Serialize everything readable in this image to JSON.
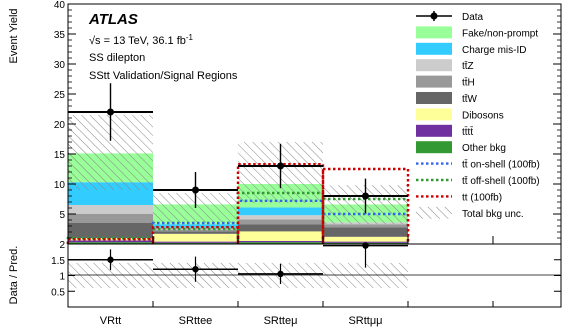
{
  "chart_data": [
    {
      "type": "bar",
      "stacked": true,
      "categories": [
        "VRtt",
        "SRttee",
        "SRtteμ",
        "SRttμμ"
      ],
      "ylabel": "Event Yield",
      "ylim": [
        0,
        40
      ],
      "yticks": [
        5,
        10,
        15,
        20,
        25,
        30,
        35,
        40
      ],
      "annotations": {
        "experiment": "ATLAS",
        "energy_prefix": "√s = 13 TeV, 36.1 fb",
        "energy_sup": "-1",
        "line2": "SS dilepton",
        "line3": "SStt Validation/Signal Regions"
      },
      "series": [
        {
          "name": "Other bkg",
          "color": "#339933",
          "values": [
            0.3,
            0.2,
            0.3,
            0.2
          ]
        },
        {
          "name": "tt̄tt̄",
          "color": "#7030a0",
          "values": [
            0.3,
            0.2,
            0.2,
            0.2
          ]
        },
        {
          "name": "Dibosons",
          "color": "#ffff99",
          "values": [
            0.4,
            1.3,
            1.6,
            0.8
          ]
        },
        {
          "name": "tt̄W",
          "color": "#666666",
          "values": [
            2.5,
            0.4,
            1.2,
            1.6
          ]
        },
        {
          "name": "tt̄H",
          "color": "#999999",
          "values": [
            1.5,
            0.3,
            0.8,
            0.5
          ]
        },
        {
          "name": "tt̄Z",
          "color": "#cccccc",
          "values": [
            1.5,
            0.3,
            0.7,
            0.3
          ]
        },
        {
          "name": "Charge mis-ID",
          "color": "#33ccff",
          "values": [
            3.8,
            0.6,
            1.3,
            0.0
          ]
        },
        {
          "name": "Fake/non-prompt",
          "color": "#99ff99",
          "values": [
            4.8,
            3.3,
            3.9,
            3.0
          ]
        }
      ],
      "data": {
        "name": "Data",
        "values": [
          22,
          9,
          13,
          8
        ],
        "errors": [
          4.8,
          3.0,
          3.7,
          2.9
        ]
      },
      "signals": [
        {
          "name": "tt̄ on-shell (100fb)",
          "color": "#3366ee",
          "style": "dotted",
          "values": [
            0.9,
            3.5,
            7.2,
            5.0
          ]
        },
        {
          "name": "tt̄ off-shell (100fb)",
          "color": "#339933",
          "style": "dotted",
          "values": [
            1.0,
            2.5,
            8.5,
            7.5
          ]
        },
        {
          "name": "tt (100fb)",
          "color": "#cc0000",
          "style": "dotted",
          "values": [
            0.8,
            2.8,
            13.3,
            12.5
          ]
        }
      ],
      "uncertainty": {
        "name": "Total bkg unc.",
        "lower": [
          9,
          3.5,
          6.8,
          3.3
        ],
        "upper": [
          21.5,
          8.5,
          17,
          9.8
        ]
      },
      "legend": {
        "position": "top-right",
        "entries": [
          "Data",
          "Fake/non-prompt",
          "Charge mis-ID",
          "tt̄Z",
          "tt̄H",
          "tt̄W",
          "Dibosons",
          "tt̄tt̄",
          "Other bkg",
          "tt̄ on-shell (100fb)",
          "tt̄ off-shell (100fb)",
          "tt (100fb)",
          "Total bkg unc."
        ]
      }
    },
    {
      "type": "scatter",
      "categories": [
        "VRtt",
        "SRttee",
        "SRtteμ",
        "SRttμμ"
      ],
      "ylabel": "Data / Pred.",
      "ylim": [
        0,
        2
      ],
      "yticks": [
        "0.5",
        "1",
        "1.5",
        "2"
      ],
      "values": [
        1.5,
        1.2,
        1.05,
        1.95
      ],
      "errors": [
        0.33,
        0.4,
        0.32,
        0.7
      ],
      "uncertainty": {
        "lower": [
          0.6,
          0.6,
          0.6,
          0.6
        ],
        "upper": [
          1.4,
          1.4,
          1.4,
          1.4
        ]
      }
    }
  ]
}
